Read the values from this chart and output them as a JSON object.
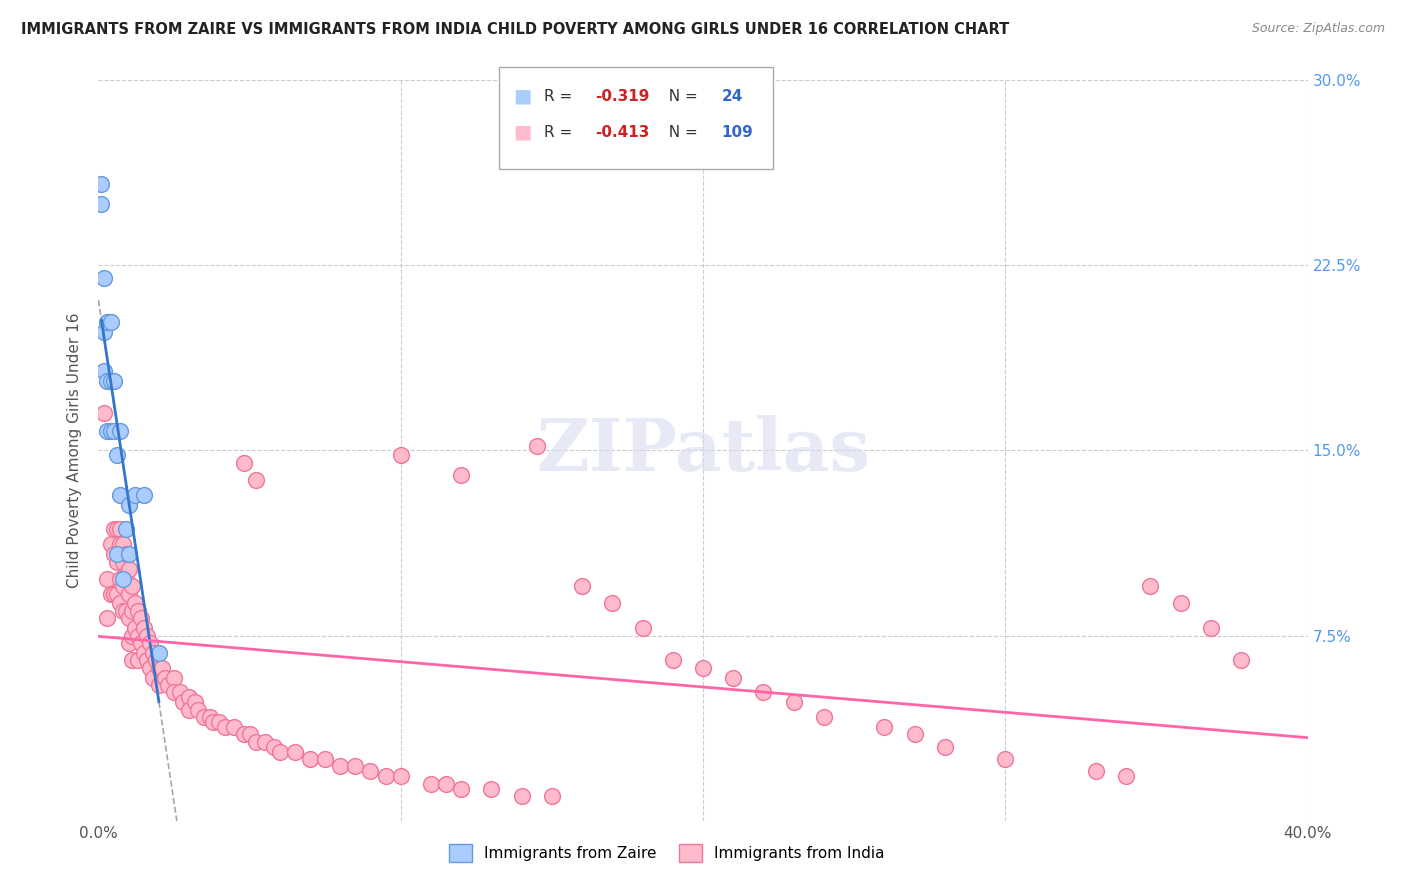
{
  "title": "IMMIGRANTS FROM ZAIRE VS IMMIGRANTS FROM INDIA CHILD POVERTY AMONG GIRLS UNDER 16 CORRELATION CHART",
  "source": "Source: ZipAtlas.com",
  "ylabel": "Child Poverty Among Girls Under 16",
  "xlim": [
    0.0,
    0.4
  ],
  "ylim": [
    0.0,
    0.3
  ],
  "background_color": "#ffffff",
  "zaire_color": "#aaccff",
  "india_color": "#ffbbcc",
  "zaire_edge": "#6699dd",
  "india_edge": "#ee7799",
  "zaire_line_color": "#3377cc",
  "india_line_color": "#ff66aa",
  "legend_r_zaire": "R = -0.319",
  "legend_n_zaire": "N =  24",
  "legend_r_india": "R = -0.413",
  "legend_n_india": "N = 109",
  "zaire_x": [
    0.001,
    0.001,
    0.002,
    0.002,
    0.002,
    0.003,
    0.003,
    0.003,
    0.004,
    0.004,
    0.004,
    0.005,
    0.005,
    0.006,
    0.006,
    0.007,
    0.007,
    0.008,
    0.009,
    0.01,
    0.01,
    0.012,
    0.015,
    0.02
  ],
  "zaire_y": [
    0.258,
    0.25,
    0.22,
    0.198,
    0.182,
    0.202,
    0.178,
    0.158,
    0.202,
    0.178,
    0.158,
    0.178,
    0.158,
    0.148,
    0.108,
    0.158,
    0.132,
    0.098,
    0.118,
    0.128,
    0.108,
    0.132,
    0.132,
    0.068
  ],
  "india_x": [
    0.002,
    0.003,
    0.003,
    0.004,
    0.004,
    0.005,
    0.005,
    0.005,
    0.006,
    0.006,
    0.006,
    0.007,
    0.007,
    0.007,
    0.007,
    0.008,
    0.008,
    0.008,
    0.008,
    0.009,
    0.009,
    0.009,
    0.01,
    0.01,
    0.01,
    0.01,
    0.011,
    0.011,
    0.011,
    0.011,
    0.012,
    0.012,
    0.013,
    0.013,
    0.013,
    0.014,
    0.014,
    0.015,
    0.015,
    0.016,
    0.016,
    0.017,
    0.017,
    0.018,
    0.018,
    0.019,
    0.02,
    0.02,
    0.021,
    0.022,
    0.023,
    0.025,
    0.025,
    0.027,
    0.028,
    0.03,
    0.03,
    0.032,
    0.033,
    0.035,
    0.037,
    0.038,
    0.04,
    0.042,
    0.045,
    0.048,
    0.05,
    0.052,
    0.055,
    0.058,
    0.06,
    0.065,
    0.07,
    0.075,
    0.08,
    0.085,
    0.09,
    0.095,
    0.1,
    0.11,
    0.115,
    0.12,
    0.13,
    0.14,
    0.15,
    0.16,
    0.17,
    0.18,
    0.19,
    0.2,
    0.21,
    0.22,
    0.23,
    0.24,
    0.26,
    0.27,
    0.28,
    0.3,
    0.33,
    0.34,
    0.348,
    0.358,
    0.368,
    0.378,
    0.048,
    0.052,
    0.1,
    0.12,
    0.145
  ],
  "india_y": [
    0.165,
    0.098,
    0.082,
    0.112,
    0.092,
    0.118,
    0.108,
    0.092,
    0.118,
    0.105,
    0.092,
    0.118,
    0.112,
    0.098,
    0.088,
    0.112,
    0.105,
    0.095,
    0.085,
    0.108,
    0.098,
    0.085,
    0.102,
    0.092,
    0.082,
    0.072,
    0.095,
    0.085,
    0.075,
    0.065,
    0.088,
    0.078,
    0.085,
    0.075,
    0.065,
    0.082,
    0.072,
    0.078,
    0.068,
    0.075,
    0.065,
    0.072,
    0.062,
    0.068,
    0.058,
    0.065,
    0.062,
    0.055,
    0.062,
    0.058,
    0.055,
    0.058,
    0.052,
    0.052,
    0.048,
    0.05,
    0.045,
    0.048,
    0.045,
    0.042,
    0.042,
    0.04,
    0.04,
    0.038,
    0.038,
    0.035,
    0.035,
    0.032,
    0.032,
    0.03,
    0.028,
    0.028,
    0.025,
    0.025,
    0.022,
    0.022,
    0.02,
    0.018,
    0.018,
    0.015,
    0.015,
    0.013,
    0.013,
    0.01,
    0.01,
    0.095,
    0.088,
    0.078,
    0.065,
    0.062,
    0.058,
    0.052,
    0.048,
    0.042,
    0.038,
    0.035,
    0.03,
    0.025,
    0.02,
    0.018,
    0.095,
    0.088,
    0.078,
    0.065,
    0.145,
    0.138,
    0.148,
    0.14,
    0.152
  ],
  "zaire_regr": [
    0.0,
    0.022,
    0.205,
    0.082
  ],
  "india_regr": [
    0.0,
    0.4,
    0.115,
    0.025
  ],
  "zaire_dash": [
    0.0,
    0.25,
    0.205,
    0.018
  ]
}
